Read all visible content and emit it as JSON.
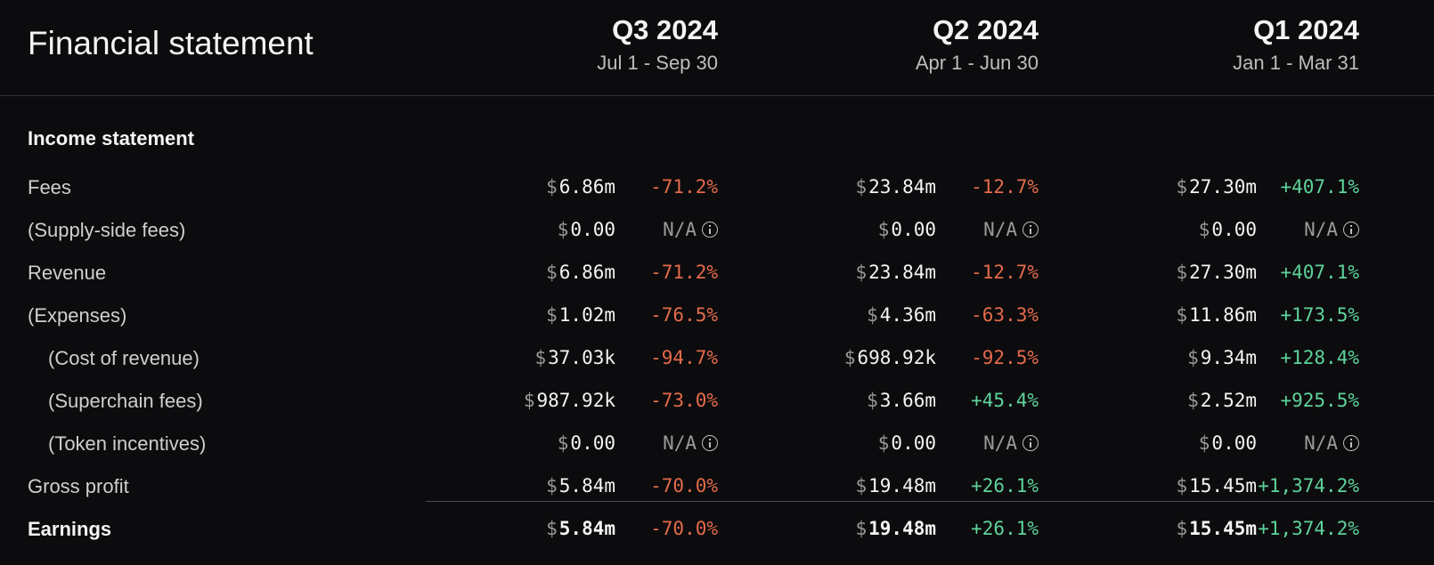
{
  "title": "Financial statement",
  "quarters": [
    {
      "name": "Q3 2024",
      "range": "Jul 1 - Sep 30"
    },
    {
      "name": "Q2 2024",
      "range": "Apr 1 - Jun 30"
    },
    {
      "name": "Q1 2024",
      "range": "Jan 1 - Mar 31"
    }
  ],
  "section": "Income statement",
  "currency_symbol": "$",
  "rows": [
    {
      "label": "Fees",
      "indent": false,
      "bold": false,
      "values": [
        {
          "amount": "6.86m",
          "pct": "-71.2%",
          "trend": "neg"
        },
        {
          "amount": "23.84m",
          "pct": "-12.7%",
          "trend": "neg"
        },
        {
          "amount": "27.30m",
          "pct": "+407.1%",
          "trend": "pos"
        }
      ]
    },
    {
      "label": "(Supply-side fees)",
      "indent": false,
      "bold": false,
      "values": [
        {
          "amount": "0.00",
          "pct": "N/A",
          "trend": "na"
        },
        {
          "amount": "0.00",
          "pct": "N/A",
          "trend": "na"
        },
        {
          "amount": "0.00",
          "pct": "N/A",
          "trend": "na"
        }
      ]
    },
    {
      "label": "Revenue",
      "indent": false,
      "bold": false,
      "values": [
        {
          "amount": "6.86m",
          "pct": "-71.2%",
          "trend": "neg"
        },
        {
          "amount": "23.84m",
          "pct": "-12.7%",
          "trend": "neg"
        },
        {
          "amount": "27.30m",
          "pct": "+407.1%",
          "trend": "pos"
        }
      ]
    },
    {
      "label": "(Expenses)",
      "indent": false,
      "bold": false,
      "values": [
        {
          "amount": "1.02m",
          "pct": "-76.5%",
          "trend": "neg"
        },
        {
          "amount": "4.36m",
          "pct": "-63.3%",
          "trend": "neg"
        },
        {
          "amount": "11.86m",
          "pct": "+173.5%",
          "trend": "pos"
        }
      ]
    },
    {
      "label": "(Cost of revenue)",
      "indent": true,
      "bold": false,
      "values": [
        {
          "amount": "37.03k",
          "pct": "-94.7%",
          "trend": "neg"
        },
        {
          "amount": "698.92k",
          "pct": "-92.5%",
          "trend": "neg"
        },
        {
          "amount": "9.34m",
          "pct": "+128.4%",
          "trend": "pos"
        }
      ]
    },
    {
      "label": "(Superchain fees)",
      "indent": true,
      "bold": false,
      "values": [
        {
          "amount": "987.92k",
          "pct": "-73.0%",
          "trend": "neg"
        },
        {
          "amount": "3.66m",
          "pct": "+45.4%",
          "trend": "pos"
        },
        {
          "amount": "2.52m",
          "pct": "+925.5%",
          "trend": "pos"
        }
      ]
    },
    {
      "label": "(Token incentives)",
      "indent": true,
      "bold": false,
      "values": [
        {
          "amount": "0.00",
          "pct": "N/A",
          "trend": "na"
        },
        {
          "amount": "0.00",
          "pct": "N/A",
          "trend": "na"
        },
        {
          "amount": "0.00",
          "pct": "N/A",
          "trend": "na"
        }
      ]
    },
    {
      "label": "Gross profit",
      "indent": false,
      "bold": false,
      "values": [
        {
          "amount": "5.84m",
          "pct": "-70.0%",
          "trend": "neg"
        },
        {
          "amount": "19.48m",
          "pct": "+26.1%",
          "trend": "pos"
        },
        {
          "amount": "15.45m",
          "pct": "+1,374.2%",
          "trend": "pos"
        }
      ]
    },
    {
      "label": "Earnings",
      "indent": false,
      "bold": true,
      "values": [
        {
          "amount": "5.84m",
          "pct": "-70.0%",
          "trend": "neg"
        },
        {
          "amount": "19.48m",
          "pct": "+26.1%",
          "trend": "pos"
        },
        {
          "amount": "15.45m",
          "pct": "+1,374.2%",
          "trend": "pos"
        }
      ]
    }
  ],
  "colors": {
    "background": "#0c0b0d",
    "negative": "#e36b4b",
    "positive": "#5ed39b",
    "muted": "#9a9a9a"
  },
  "icons": {
    "na_info": "info-circle-icon"
  }
}
